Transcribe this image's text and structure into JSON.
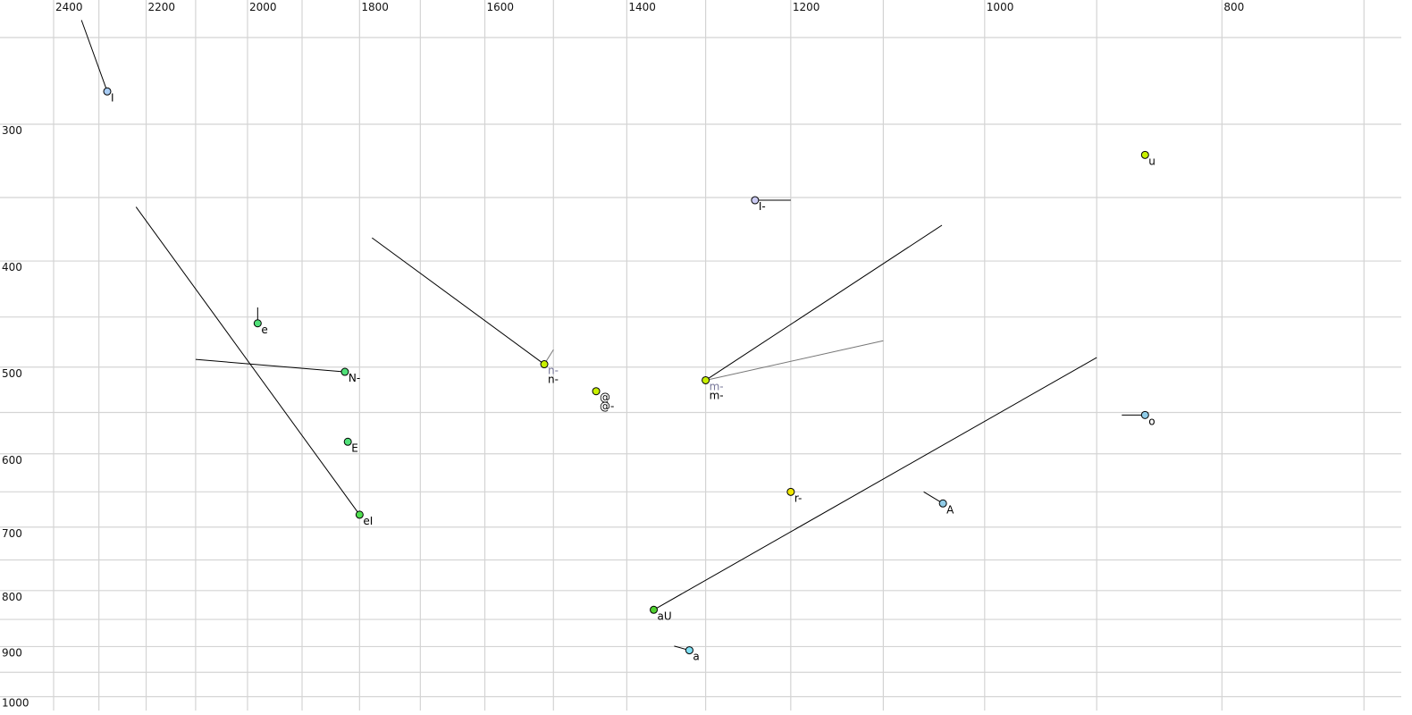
{
  "chart_data": {
    "type": "scatter",
    "title": "",
    "xlabel": "",
    "ylabel": "",
    "x_scale": "log",
    "y_scale": "log",
    "x_reversed": true,
    "y_reversed": false,
    "x_axis_position": "top",
    "xlim": [
      2520,
      690
    ],
    "ylim": [
      231,
      1030
    ],
    "grid": true,
    "x_gridlines": [
      2400,
      2300,
      2200,
      2100,
      2000,
      1900,
      1800,
      1700,
      1600,
      1500,
      1400,
      1300,
      1200,
      1100,
      1000,
      900,
      800,
      700
    ],
    "y_gridlines": [
      250,
      300,
      350,
      400,
      450,
      500,
      550,
      600,
      650,
      700,
      750,
      800,
      850,
      900,
      950,
      1000
    ],
    "x_tick_labels": [
      "2400",
      "2200",
      "2000",
      "1800",
      "1600",
      "1400",
      "1200",
      "1000",
      "800"
    ],
    "y_tick_labels": [
      "300",
      "400",
      "500",
      "600",
      "700",
      "800",
      "900",
      "1000"
    ],
    "points": [
      {
        "labels": [
          {
            "text": "I",
            "color": "#000000"
          }
        ],
        "x": 2282,
        "y": 280,
        "color": "#a8ccf4",
        "trajectories": [
          {
            "x": 2338,
            "y": 241,
            "color": "#000000"
          }
        ]
      },
      {
        "labels": [
          {
            "text": "e",
            "color": "#000000"
          }
        ],
        "x": 1981,
        "y": 456,
        "color": "#50e078",
        "trajectories": [
          {
            "x": 1981,
            "y": 441,
            "color": "#000000"
          }
        ]
      },
      {
        "labels": [
          {
            "text": "N-",
            "color": "#000000"
          }
        ],
        "x": 1825,
        "y": 505,
        "color": "#50e078",
        "trajectories": [
          {
            "x": 2100,
            "y": 492,
            "color": "#000000"
          }
        ]
      },
      {
        "labels": [
          {
            "text": "E",
            "color": "#000000"
          }
        ],
        "x": 1820,
        "y": 585,
        "color": "#50e078",
        "trajectories": []
      },
      {
        "labels": [
          {
            "text": "eI",
            "color": "#000000"
          }
        ],
        "x": 1800,
        "y": 682,
        "color": "#50e050",
        "trajectories": [
          {
            "x": 2221,
            "y": 357,
            "color": "#000000"
          }
        ]
      },
      {
        "labels": [
          {
            "text": "n-",
            "color": "#777799"
          },
          {
            "text": "n-",
            "color": "#000000"
          }
        ],
        "x": 1513,
        "y": 497,
        "color": "#c8f000",
        "trajectories": [
          {
            "x": 1779,
            "y": 381,
            "color": "#000000"
          },
          {
            "x": 1500,
            "y": 482,
            "color": "#777777"
          }
        ]
      },
      {
        "labels": [
          {
            "text": "@",
            "color": "#000000"
          },
          {
            "text": "@-",
            "color": "#000000"
          }
        ],
        "x": 1441,
        "y": 526,
        "color": "#c8f000",
        "trajectories": []
      },
      {
        "labels": [
          {
            "text": "m-",
            "color": "#777799"
          },
          {
            "text": "m-",
            "color": "#000000"
          }
        ],
        "x": 1300,
        "y": 514,
        "color": "#c8f000",
        "trajectories": [
          {
            "x": 1041,
            "y": 371,
            "color": "#000000"
          },
          {
            "x": 1100,
            "y": 473,
            "color": "#777777"
          }
        ]
      },
      {
        "labels": [
          {
            "text": "I-",
            "color": "#000000"
          }
        ],
        "x": 1241,
        "y": 352,
        "color": "#ccccf4",
        "trajectories": [
          {
            "x": 1200,
            "y": 352,
            "color": "#000000"
          }
        ]
      },
      {
        "labels": [
          {
            "text": "u",
            "color": "#000000"
          }
        ],
        "x": 860,
        "y": 320,
        "color": "#c8f000",
        "trajectories": []
      },
      {
        "labels": [
          {
            "text": "o",
            "color": "#000000"
          }
        ],
        "x": 860,
        "y": 553,
        "color": "#90cce8",
        "trajectories": [
          {
            "x": 879,
            "y": 553,
            "color": "#000000"
          }
        ]
      },
      {
        "labels": [
          {
            "text": "r-",
            "color": "#000000"
          }
        ],
        "x": 1200,
        "y": 650,
        "color": "#f0e800",
        "trajectories": [
          {
            "x": 1200,
            "y": 645,
            "color": "#000000"
          }
        ]
      },
      {
        "labels": [
          {
            "text": "A",
            "color": "#000000"
          }
        ],
        "x": 1040,
        "y": 666,
        "color": "#90cce8",
        "trajectories": [
          {
            "x": 1059,
            "y": 650,
            "color": "#000000"
          }
        ]
      },
      {
        "labels": [
          {
            "text": "aU",
            "color": "#000000"
          }
        ],
        "x": 1365,
        "y": 833,
        "color": "#50d030",
        "trajectories": [
          {
            "x": 900,
            "y": 490,
            "color": "#000000"
          }
        ]
      },
      {
        "labels": [
          {
            "text": "a",
            "color": "#000000"
          }
        ],
        "x": 1320,
        "y": 907,
        "color": "#80e0f4",
        "trajectories": [
          {
            "x": 1339,
            "y": 899,
            "color": "#000000"
          }
        ]
      }
    ]
  }
}
